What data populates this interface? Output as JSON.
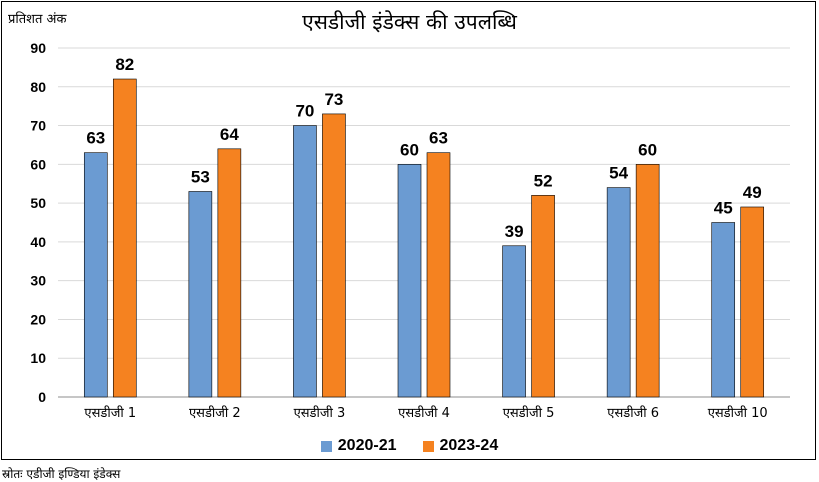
{
  "title": "एसडीजी इंडेक्स की उपलब्धि",
  "y_unit_label": "प्रतिशत अंक",
  "source": "स्रोतः एडीजी इण्डिया इंडेक्स",
  "colors": {
    "series_1": "#6b9bd2",
    "series_2": "#f58220",
    "grid": "#d9d9d9"
  },
  "chart_data": {
    "type": "bar",
    "title": "एसडीजी इंडेक्स की उपलब्धि",
    "ylabel": "प्रतिशत अंक",
    "xlabel": "",
    "ylim": [
      0,
      90
    ],
    "yticks": [
      0,
      10,
      20,
      30,
      40,
      50,
      60,
      70,
      80,
      90
    ],
    "grid": true,
    "legend_position": "bottom",
    "categories": [
      "एसडीजी 1",
      "एसडीजी 2",
      "एसडीजी 3",
      "एसडीजी 4",
      "एसडीजी 5",
      "एसडीजी 6",
      "एसडीजी 10"
    ],
    "series": [
      {
        "name": "2020-21",
        "values": [
          63,
          53,
          70,
          60,
          39,
          54,
          45
        ]
      },
      {
        "name": "2023-24",
        "values": [
          82,
          64,
          73,
          63,
          52,
          60,
          49
        ]
      }
    ]
  }
}
